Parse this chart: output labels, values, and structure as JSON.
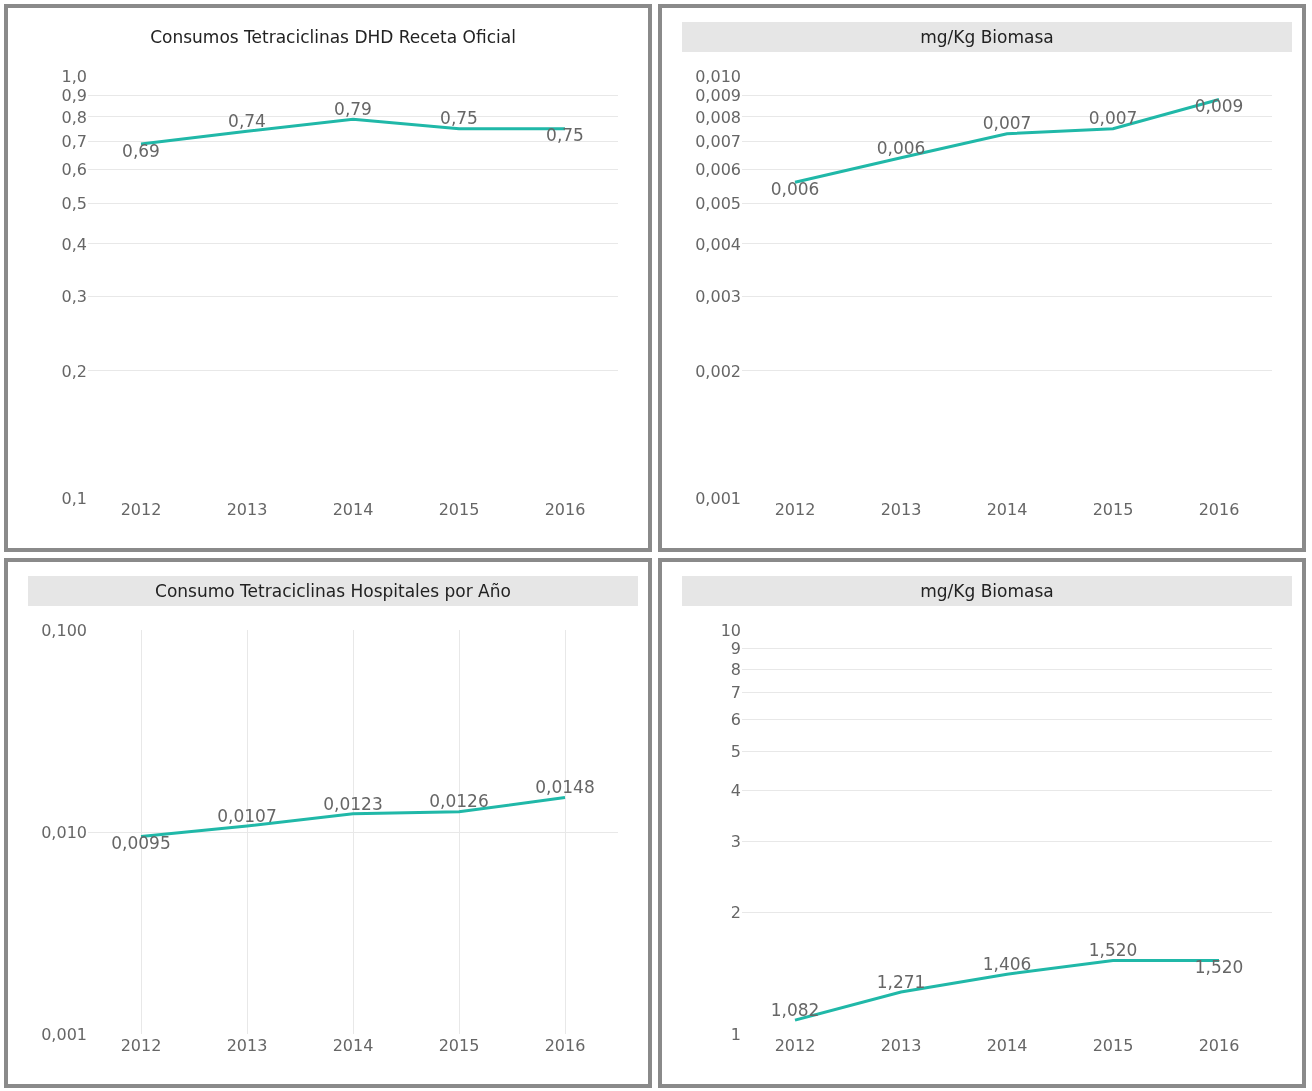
{
  "chart_data": [
    {
      "type": "line",
      "title": "Consumos Tetraciclinas DHD Receta Oficial",
      "categories": [
        "2012",
        "2013",
        "2014",
        "2015",
        "2016"
      ],
      "values": [
        0.69,
        0.74,
        0.79,
        0.75,
        0.75
      ],
      "value_labels": [
        "0,69",
        "0,74",
        "0,79",
        "0,75",
        "0,75"
      ],
      "color": "#20b8a8",
      "log": "y",
      "ylim": [
        0.1,
        1.0
      ],
      "yticks": [
        {
          "value": 0.1,
          "label": "0,1"
        },
        {
          "value": 0.2,
          "label": "0,2"
        },
        {
          "value": 0.3,
          "label": "0,3"
        },
        {
          "value": 0.4,
          "label": "0,4"
        },
        {
          "value": 0.5,
          "label": "0,5"
        },
        {
          "value": 0.6,
          "label": "0,6"
        },
        {
          "value": 0.7,
          "label": "0,7"
        },
        {
          "value": 0.8,
          "label": "0,8"
        },
        {
          "value": 0.9,
          "label": "0,9"
        },
        {
          "value": 1.0,
          "label": "1,0"
        }
      ],
      "grid": "y",
      "marker": "none",
      "line_style": "solid"
    },
    {
      "type": "line",
      "title": "mg/Kg Biomasa",
      "categories": [
        "2012",
        "2013",
        "2014",
        "2015",
        "2016"
      ],
      "values": [
        0.0056,
        0.0064,
        0.0073,
        0.0075,
        0.0088
      ],
      "value_labels": [
        "0,006",
        "0,006",
        "0,007",
        "0,007",
        "0,009"
      ],
      "color": "#20b8a8",
      "log": "y",
      "ylim": [
        0.001,
        0.01
      ],
      "yticks": [
        {
          "value": 0.001,
          "label": "0,001"
        },
        {
          "value": 0.002,
          "label": "0,002"
        },
        {
          "value": 0.003,
          "label": "0,003"
        },
        {
          "value": 0.004,
          "label": "0,004"
        },
        {
          "value": 0.005,
          "label": "0,005"
        },
        {
          "value": 0.006,
          "label": "0,006"
        },
        {
          "value": 0.007,
          "label": "0,007"
        },
        {
          "value": 0.008,
          "label": "0,008"
        },
        {
          "value": 0.009,
          "label": "0,009"
        },
        {
          "value": 0.01,
          "label": "0,010"
        }
      ],
      "grid": "y",
      "marker": "none",
      "line_style": "solid"
    },
    {
      "type": "line",
      "title": "Consumo Tetraciclinas Hospitales por Año",
      "categories": [
        "2012",
        "2013",
        "2014",
        "2015",
        "2016"
      ],
      "values": [
        0.0095,
        0.0107,
        0.0123,
        0.0126,
        0.0148
      ],
      "value_labels": [
        "0,0095",
        "0,0107",
        "0,0123",
        "0,0126",
        "0,0148"
      ],
      "color": "#20b8a8",
      "log": "y",
      "ylim": [
        0.001,
        0.1
      ],
      "yticks": [
        {
          "value": 0.001,
          "label": "0,001"
        },
        {
          "value": 0.01,
          "label": "0,010"
        },
        {
          "value": 0.1,
          "label": "0,100"
        }
      ],
      "grid": true,
      "marker": "none",
      "line_style": "solid"
    },
    {
      "type": "line",
      "title": "mg/Kg Biomasa",
      "categories": [
        "2012",
        "2013",
        "2014",
        "2015",
        "2016"
      ],
      "values": [
        1.082,
        1.271,
        1.406,
        1.52,
        1.52
      ],
      "value_labels": [
        "1,082",
        "1,271",
        "1,406",
        "1,520",
        "1,520"
      ],
      "color": "#20b8a8",
      "log": "y",
      "ylim": [
        1,
        10
      ],
      "yticks": [
        1,
        2,
        3,
        4,
        5,
        6,
        7,
        8,
        9,
        10
      ],
      "grid": "y",
      "marker": "none",
      "line_style": "solid"
    }
  ]
}
